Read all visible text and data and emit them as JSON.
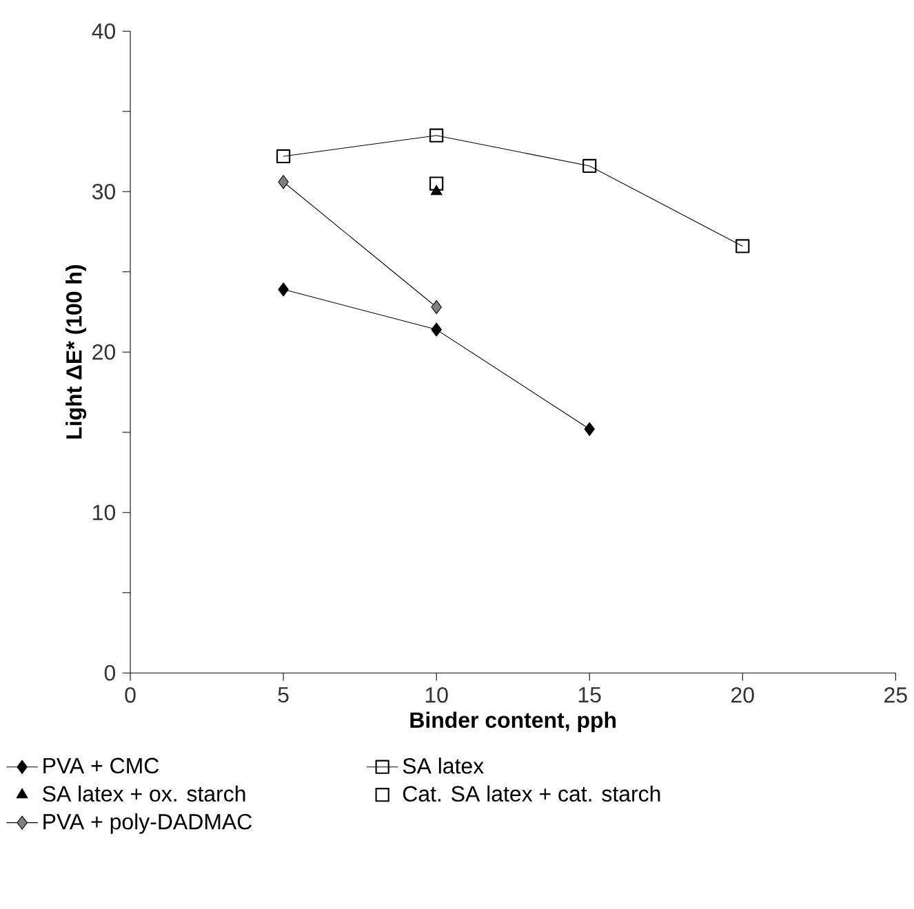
{
  "chart_data": {
    "type": "line",
    "xlabel": "Binder content, pph",
    "ylabel": "Light ΔE* (100 h)",
    "xlim": [
      0,
      25
    ],
    "xticks": [
      0,
      5,
      10,
      15,
      20,
      25
    ],
    "ylim": [
      0,
      40
    ],
    "yticks": [
      0,
      {
        "value": 5,
        "label": null
      },
      10,
      {
        "value": 15,
        "label": null
      },
      20,
      {
        "value": 25,
        "label": null
      },
      30,
      {
        "value": 35,
        "label": null
      },
      40
    ],
    "grid": false,
    "legend": "bottom",
    "series": [
      {
        "name": "PVA + CMC",
        "marker": "diamond",
        "color": "#000000",
        "x": [
          5,
          10,
          15
        ],
        "values": [
          23.9,
          21.4,
          15.2
        ]
      },
      {
        "name": "SA latex",
        "marker": "square",
        "color": "#000000",
        "x": [
          5,
          10,
          15,
          20
        ],
        "values": [
          32.2,
          33.5,
          31.6,
          26.6
        ]
      },
      {
        "name": "SA latex + ox. starch",
        "type": "scatter",
        "marker": "triangle",
        "color": "#000000",
        "x": [
          10
        ],
        "values": [
          30.0
        ]
      },
      {
        "name": "Cat. SA latex + cat. starch",
        "type": "scatter",
        "marker": "square",
        "color": "#000000",
        "x": [
          10
        ],
        "values": [
          30.5
        ]
      },
      {
        "name": "PVA + poly-DADMAC",
        "marker": "diamond",
        "color": "#808080",
        "x": [
          5,
          10
        ],
        "values": [
          30.6,
          22.8
        ]
      }
    ]
  }
}
